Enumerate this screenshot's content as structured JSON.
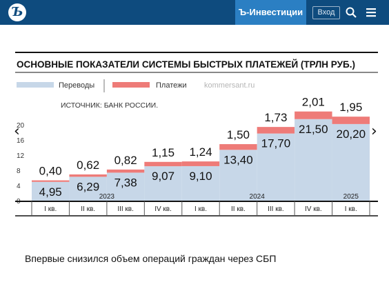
{
  "header": {
    "logo_glyph": "Ъ",
    "brand_label": "Ъ-Инвестиции",
    "login_label": "Вход",
    "search_icon": "search-icon",
    "menu_icon": "hamburger-menu-icon",
    "bar_color": "#0e4b7e",
    "brand_color": "#2b7fc3"
  },
  "nav": {
    "prev": "‹",
    "next": "›"
  },
  "chart_data": {
    "type": "area",
    "stacked": true,
    "title": "ОСНОВНЫЕ ПОКАЗАТЕЛИ СИСТЕМЫ БЫСТРЫХ ПЛАТЕЖЕЙ (ТРЛН РУБ.)",
    "source": "ИСТОЧНИК: БАНК РОССИИ.",
    "watermark": "kommersant.ru",
    "categories": [
      "I кв.",
      "II кв.",
      "III кв.",
      "IV кв.",
      "I кв.",
      "II кв.",
      "III кв.",
      "IV кв.",
      "I кв."
    ],
    "year_labels": [
      {
        "label": "2023",
        "start": 0,
        "end": 3
      },
      {
        "label": "2024",
        "start": 4,
        "end": 7
      },
      {
        "label": "2025",
        "start": 8,
        "end": 8
      }
    ],
    "series": [
      {
        "name": "Переводы",
        "color": "#c7d7e8",
        "values": [
          4.95,
          6.29,
          7.38,
          9.07,
          9.1,
          13.4,
          17.7,
          21.5,
          20.2
        ],
        "labels": [
          "4,95",
          "6,29",
          "7,38",
          "9,07",
          "9,10",
          "13,40",
          "17,70",
          "21,50",
          "20,20"
        ]
      },
      {
        "name": "Платежи",
        "color": "#ee7b78",
        "values": [
          0.4,
          0.62,
          0.82,
          1.15,
          1.24,
          1.5,
          1.73,
          2.01,
          1.95
        ],
        "labels": [
          "0,40",
          "0,62",
          "0,82",
          "1,15",
          "1,24",
          "1,50",
          "1,73",
          "2,01",
          "1,95"
        ]
      }
    ],
    "y_ticks": [
      0,
      4,
      8,
      12,
      16,
      20
    ],
    "ylim": [
      0,
      24
    ],
    "grid": false,
    "legend": "top-left"
  },
  "caption": "Впервые снизился объем операций граждан через СБП"
}
